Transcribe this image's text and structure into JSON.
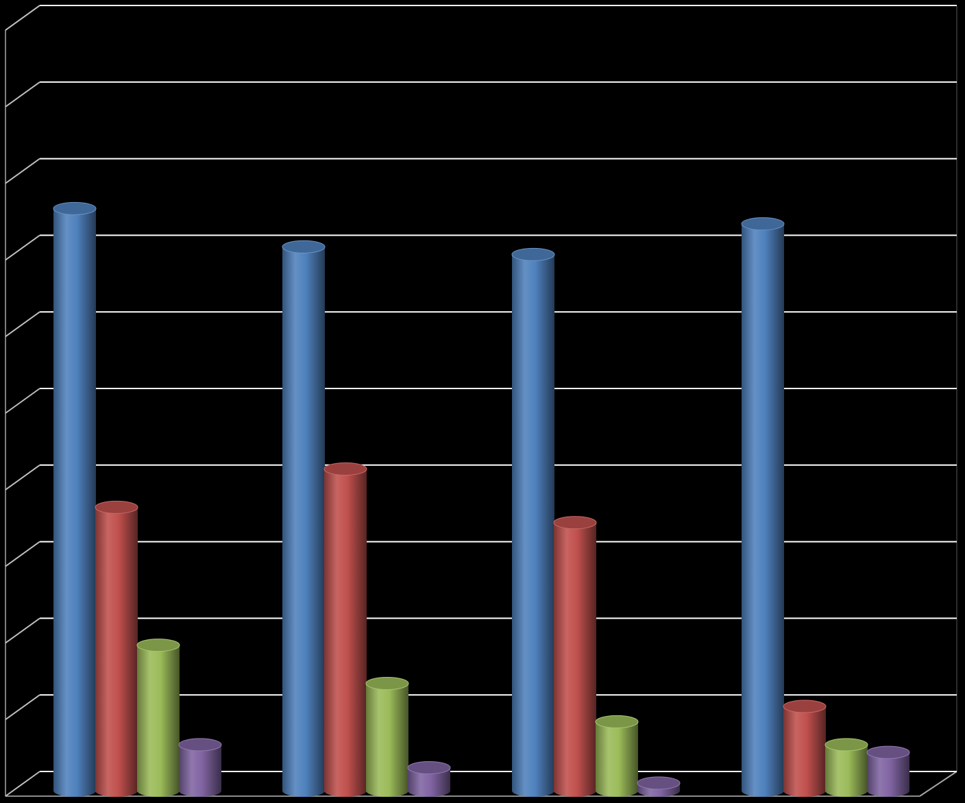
{
  "chart_data": {
    "type": "bar",
    "style": "3d-cylinder",
    "background": "#000000",
    "gridline_color": "#ffffff",
    "grid": true,
    "ylim": [
      0,
      10
    ],
    "categories": [
      "",
      "",
      "",
      ""
    ],
    "series": [
      {
        "color": "#4f81bd",
        "values": [
          7.6,
          7.1,
          7.0,
          7.4
        ]
      },
      {
        "color": "#c0504d",
        "values": [
          3.7,
          4.2,
          3.5,
          1.1
        ]
      },
      {
        "color": "#9bbb59",
        "values": [
          1.9,
          1.4,
          0.9,
          0.6
        ]
      },
      {
        "color": "#8064a2",
        "values": [
          0.6,
          0.3,
          0.1,
          0.5
        ]
      }
    ]
  }
}
